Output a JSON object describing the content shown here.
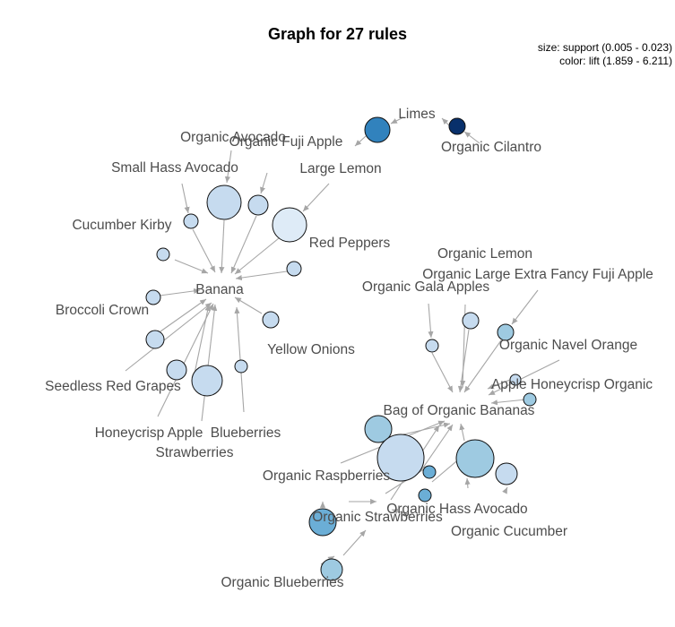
{
  "title": "Graph for 27 rules",
  "legend": {
    "size": "size: support (0.005 - 0.023)",
    "color": "color: lift (1.859 - 6.211)"
  },
  "colors": {
    "c1": "#deebf7",
    "c2": "#c6dbef",
    "c3": "#9ecae1",
    "c4": "#6baed6",
    "c5": "#3182bd",
    "c6": "#08306b",
    "edge": "#a6a6a6"
  },
  "labels": {
    "limes": "Limes",
    "organic_cilantro": "Organic Cilantro",
    "organic_avocado": "Organic Avocado",
    "organic_fuji_apple": "Organic Fuji Apple",
    "large_lemon": "Large Lemon",
    "small_hass_avocado": "Small Hass Avocado",
    "cucumber_kirby": "Cucumber Kirby",
    "red_peppers": "Red Peppers",
    "banana": "Banana",
    "broccoli_crown": "Broccoli Crown",
    "yellow_onions": "Yellow Onions",
    "seedless_red_grapes": "Seedless Red Grapes",
    "honeycrisp_apple": "Honeycrisp Apple",
    "blueberries": "Blueberries",
    "strawberries": "Strawberries",
    "organic_lemon": "Organic Lemon",
    "organic_large_extra_fancy_fuji_apple": "Organic Large Extra Fancy Fuji Apple",
    "organic_gala_apples": "Organic Gala Apples",
    "organic_navel_orange": "Organic Navel Orange",
    "apple_honeycrisp_organic": "Apple Honeycrisp Organic",
    "bag_of_organic_bananas": "Bag of Organic Bananas",
    "organic_raspberries": "Organic Raspberries",
    "organic_hass_avocado": "Organic Hass Avocado",
    "organic_strawberries": "Organic Strawberries",
    "organic_cucumber": "Organic Cucumber",
    "organic_blueberries": "Organic Blueberries"
  }
}
